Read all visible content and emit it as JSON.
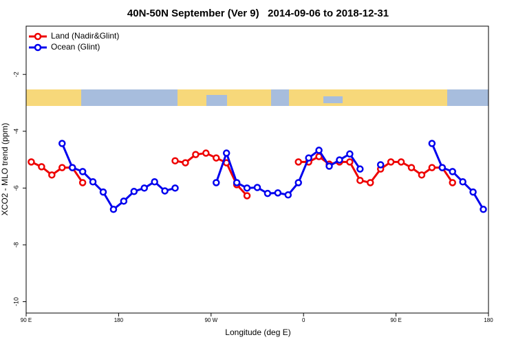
{
  "chart_data": {
    "type": "line",
    "title": "40N-50N September (Ver 9)   2014-09-06 to 2018-12-31",
    "xlabel": "Longitude (deg E)",
    "ylabel": "XCO2 - MLO trend (ppm)",
    "xlim": [
      90,
      540
    ],
    "ylim": [
      -10.4,
      -0.3
    ],
    "xticks": [
      {
        "value": 90,
        "label": "90 E"
      },
      {
        "value": 180,
        "label": "180"
      },
      {
        "value": 270,
        "label": "90 W"
      },
      {
        "value": 360,
        "label": "0"
      },
      {
        "value": 450,
        "label": "90 E"
      },
      {
        "value": 540,
        "label": "180"
      }
    ],
    "yticks": [
      -2,
      -4,
      -6,
      -8,
      -10
    ],
    "legend": "top-left",
    "series": [
      {
        "name": "Land (Nadir&Glint)",
        "color": "#ee0000",
        "x": [
          95,
          105,
          115,
          125,
          135,
          145,
          null,
          235,
          245,
          255,
          265,
          275,
          285,
          295,
          305,
          null,
          355,
          365,
          375,
          385,
          395,
          405,
          415,
          425,
          435,
          445,
          455,
          465,
          475,
          485,
          495,
          505
        ],
        "values": [
          -5.08,
          -5.25,
          -5.54,
          -5.28,
          -5.28,
          -5.81,
          null,
          -5.04,
          -5.11,
          -4.82,
          -4.77,
          -4.94,
          -5.11,
          -5.88,
          -6.27,
          null,
          -5.08,
          -5.08,
          -4.89,
          -5.16,
          -5.08,
          -5.08,
          -5.73,
          -5.81,
          -5.33,
          -5.08,
          -5.08,
          -5.28,
          -5.54,
          -5.28,
          -5.28,
          -5.81
        ]
      },
      {
        "name": "Ocean (Glint)",
        "color": "#0000ee",
        "x": [
          125,
          135,
          145,
          155,
          165,
          175,
          185,
          195,
          205,
          215,
          225,
          235,
          null,
          275,
          285,
          295,
          305,
          315,
          325,
          335,
          345,
          355,
          365,
          375,
          385,
          395,
          405,
          415,
          null,
          435,
          null,
          485,
          495,
          505,
          515,
          525,
          535
        ],
        "values": [
          -4.43,
          -5.28,
          -5.42,
          -5.78,
          -6.14,
          -6.75,
          -6.46,
          -6.12,
          -6.0,
          -5.78,
          -6.1,
          -6.0,
          null,
          -5.81,
          -4.77,
          -5.81,
          -6.0,
          -5.98,
          -6.19,
          -6.17,
          -6.24,
          -5.81,
          -4.94,
          -4.67,
          -5.23,
          -5.01,
          -4.8,
          -5.33,
          null,
          -5.18,
          null,
          -4.43,
          -5.28,
          -5.42,
          -5.78,
          -6.14,
          -6.75
        ]
      }
    ]
  }
}
